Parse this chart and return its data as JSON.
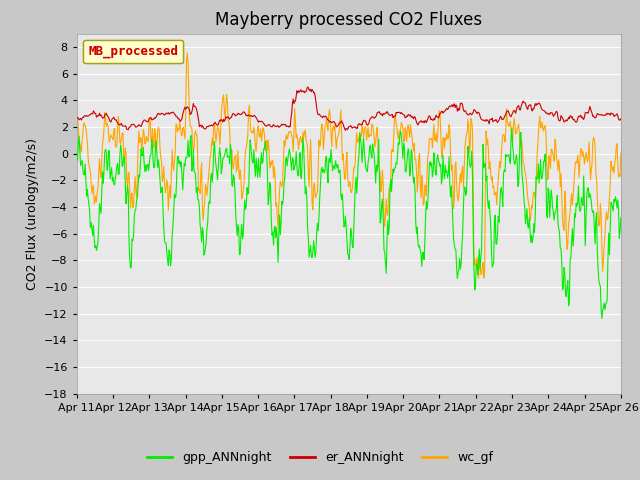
{
  "title": "Mayberry processed CO2 Fluxes",
  "ylabel": "CO2 Flux (urology/m2/s)",
  "ylim": [
    -18,
    9
  ],
  "yticks": [
    -18,
    -16,
    -14,
    -12,
    -10,
    -8,
    -6,
    -4,
    -2,
    0,
    2,
    4,
    6,
    8
  ],
  "legend_label": "MB_processed",
  "legend_facecolor": "#ffffcc",
  "legend_edgecolor": "#999900",
  "legend_textcolor": "#cc0000",
  "series_labels": [
    "gpp_ANNnight",
    "er_ANNnight",
    "wc_gf"
  ],
  "series_colors": [
    "#00ee00",
    "#cc0000",
    "#ffa500"
  ],
  "plot_bg_color": "#e8e8e8",
  "fig_bg_color": "#c8c8c8",
  "title_fontsize": 12,
  "axis_fontsize": 9,
  "tick_fontsize": 8,
  "linewidth": 0.8,
  "n_points": 720,
  "seed": 7
}
